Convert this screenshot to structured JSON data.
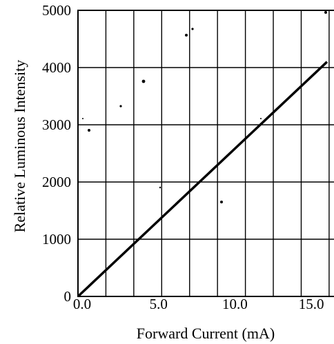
{
  "chart_data": {
    "type": "line",
    "xlabel": "Forward Current (mA)",
    "ylabel": "Relative Luminous Intensity",
    "xlim": [
      0,
      16.8
    ],
    "ylim": [
      0,
      5000
    ],
    "x_ticks": [
      0,
      5,
      10,
      15
    ],
    "x_tick_labels": [
      "0.0",
      "5.0",
      "10.0",
      "15.0"
    ],
    "y_ticks": [
      0,
      1000,
      2000,
      3000,
      4000,
      5000
    ],
    "y_tick_labels": [
      "0",
      "1000",
      "2000",
      "3000",
      "4000",
      "5000"
    ],
    "x_grid_count": 9,
    "grid": true,
    "legend": "none",
    "series": [
      {
        "x": [
          0,
          16.3
        ],
        "y": [
          0,
          4100
        ]
      }
    ]
  }
}
